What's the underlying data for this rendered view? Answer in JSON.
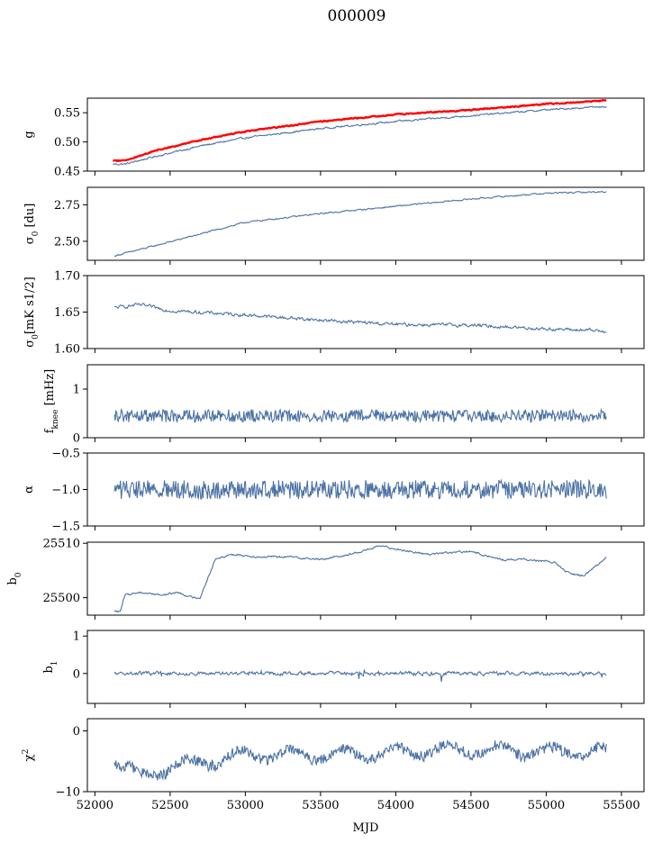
{
  "figure": {
    "title": "000009",
    "xlabel": "MJD"
  },
  "colors": {
    "series": "#4c72a5",
    "reference": "#ff0000",
    "frame": "#000000"
  },
  "chart_data": [
    {
      "type": "line",
      "id": "g",
      "ylabel": "g",
      "xlim": [
        51950,
        55650
      ],
      "ylim": [
        0.45,
        0.575
      ],
      "yticks": [
        0.45,
        0.5,
        0.55
      ],
      "ytick_labels": [
        "0.45",
        "0.50",
        "0.55"
      ],
      "xticks": [
        52000,
        52500,
        53000,
        53500,
        54000,
        54500,
        55000,
        55500
      ],
      "series": [
        {
          "role": "data",
          "color": "#4c72a5",
          "x": [
            52120,
            52200,
            52400,
            52700,
            53000,
            53500,
            54000,
            54500,
            55000,
            55400
          ],
          "y": [
            0.462,
            0.462,
            0.475,
            0.493,
            0.507,
            0.523,
            0.535,
            0.545,
            0.555,
            0.561
          ]
        },
        {
          "role": "reference",
          "color": "#ff0000",
          "x": [
            52120,
            52200,
            52400,
            52700,
            53000,
            53500,
            54000,
            54500,
            55000,
            55400
          ],
          "y": [
            0.468,
            0.468,
            0.485,
            0.503,
            0.518,
            0.535,
            0.547,
            0.555,
            0.565,
            0.571
          ]
        }
      ]
    },
    {
      "type": "line",
      "id": "sigma0_du",
      "ylabel": "σ0 [du]",
      "xlim": [
        51950,
        55650
      ],
      "ylim": [
        2.37,
        2.87
      ],
      "yticks": [
        2.5,
        2.75
      ],
      "ytick_labels": [
        "2.50",
        "2.75"
      ],
      "xticks": [
        52000,
        52500,
        53000,
        53500,
        54000,
        54500,
        55000,
        55500
      ],
      "series": [
        {
          "role": "data",
          "color": "#4c72a5",
          "x": [
            52130,
            52400,
            52700,
            53000,
            53500,
            54000,
            54500,
            55000,
            55400
          ],
          "y": [
            2.4,
            2.47,
            2.55,
            2.63,
            2.69,
            2.74,
            2.79,
            2.83,
            2.84
          ]
        }
      ]
    },
    {
      "type": "line",
      "id": "sigma0_mk",
      "ylabel": "σ0[mK s^1/2]",
      "xlim": [
        51950,
        55650
      ],
      "ylim": [
        1.6,
        1.7
      ],
      "yticks": [
        1.6,
        1.65,
        1.7
      ],
      "ytick_labels": [
        "1.60",
        "1.65",
        "1.70"
      ],
      "xticks": [
        52000,
        52500,
        53000,
        53500,
        54000,
        54500,
        55000,
        55500
      ],
      "series": [
        {
          "role": "data",
          "color": "#4c72a5",
          "x": [
            52130,
            52300,
            52500,
            53000,
            53500,
            54000,
            54500,
            55000,
            55400
          ],
          "y": [
            1.656,
            1.66,
            1.652,
            1.646,
            1.639,
            1.633,
            1.632,
            1.627,
            1.624
          ]
        }
      ]
    },
    {
      "type": "line",
      "id": "fknee",
      "ylabel": "fknee [mHz]",
      "xlim": [
        51950,
        55650
      ],
      "ylim": [
        0,
        1.5
      ],
      "yticks": [
        0,
        1
      ],
      "ytick_labels": [
        "0",
        "1"
      ],
      "xticks": [
        52000,
        52500,
        53000,
        53500,
        54000,
        54500,
        55000,
        55500
      ],
      "series": [
        {
          "role": "data",
          "color": "#4c72a5",
          "x": [
            52130,
            55400
          ],
          "y": [
            0.45,
            0.45
          ]
        }
      ]
    },
    {
      "type": "line",
      "id": "alpha",
      "ylabel": "α",
      "xlim": [
        51950,
        55650
      ],
      "ylim": [
        -1.5,
        -0.5
      ],
      "yticks": [
        -1.5,
        -1.0,
        -0.5
      ],
      "ytick_labels": [
        "−1.5",
        "−1.0",
        "−0.5"
      ],
      "xticks": [
        52000,
        52500,
        53000,
        53500,
        54000,
        54500,
        55000,
        55500
      ],
      "series": [
        {
          "role": "data",
          "color": "#4c72a5",
          "x": [
            52130,
            55400
          ],
          "y": [
            -1.0,
            -1.0
          ]
        }
      ]
    },
    {
      "type": "line",
      "id": "b0",
      "ylabel": "b0",
      "xlim": [
        51950,
        55650
      ],
      "ylim": [
        25496.8,
        25510.2
      ],
      "yticks": [
        25500,
        25510
      ],
      "ytick_labels": [
        "25500",
        "25510"
      ],
      "xticks": [
        52000,
        52500,
        53000,
        53500,
        54000,
        54500,
        55000,
        55500
      ],
      "series": [
        {
          "role": "data",
          "color": "#4c72a5",
          "x": [
            52130,
            52170,
            52200,
            52300,
            52450,
            52550,
            52650,
            52700,
            52720,
            52800,
            52900,
            53100,
            53300,
            53500,
            53700,
            53900,
            54000,
            54200,
            54500,
            54700,
            54900,
            55050,
            55150,
            55250,
            55400
          ],
          "y": [
            25497.5,
            25497.5,
            25500.5,
            25501.0,
            25500.5,
            25501.0,
            25500.0,
            25500.0,
            25501.5,
            25507.0,
            25508.0,
            25507.5,
            25507.5,
            25507.0,
            25508.0,
            25509.5,
            25509.0,
            25508.0,
            25508.5,
            25507.0,
            25507.0,
            25506.5,
            25504.5,
            25504.0,
            25507.5
          ]
        }
      ]
    },
    {
      "type": "line",
      "id": "b1",
      "ylabel": "b1",
      "xlim": [
        51950,
        55650
      ],
      "ylim": [
        -0.8,
        1.15
      ],
      "yticks": [
        0,
        1
      ],
      "ytick_labels": [
        "0",
        "1"
      ],
      "xticks": [
        52000,
        52500,
        53000,
        53500,
        54000,
        54500,
        55000,
        55500
      ],
      "series": [
        {
          "role": "data",
          "color": "#4c72a5",
          "x": [
            52130,
            55400
          ],
          "y": [
            0.0,
            0.0
          ]
        }
      ]
    },
    {
      "type": "line",
      "id": "chi2",
      "ylabel": "χ²",
      "xlim": [
        51950,
        55650
      ],
      "ylim": [
        -10,
        2
      ],
      "yticks": [
        -10,
        0
      ],
      "ytick_labels": [
        "−10",
        "0"
      ],
      "xticks": [
        52000,
        52500,
        53000,
        53500,
        54000,
        54500,
        55000,
        55500
      ],
      "xtick_labels": [
        "52000",
        "52500",
        "53000",
        "53500",
        "54000",
        "54500",
        "55000",
        "55500"
      ],
      "series": [
        {
          "role": "data",
          "color": "#4c72a5",
          "x": [
            52130,
            52300,
            52500,
            53000,
            53500,
            54000,
            54500,
            55000,
            55400
          ],
          "y": [
            -5.0,
            -7.5,
            -6.0,
            -4.0,
            -4.0,
            -3.5,
            -3.0,
            -3.5,
            -3.5
          ]
        }
      ]
    }
  ]
}
